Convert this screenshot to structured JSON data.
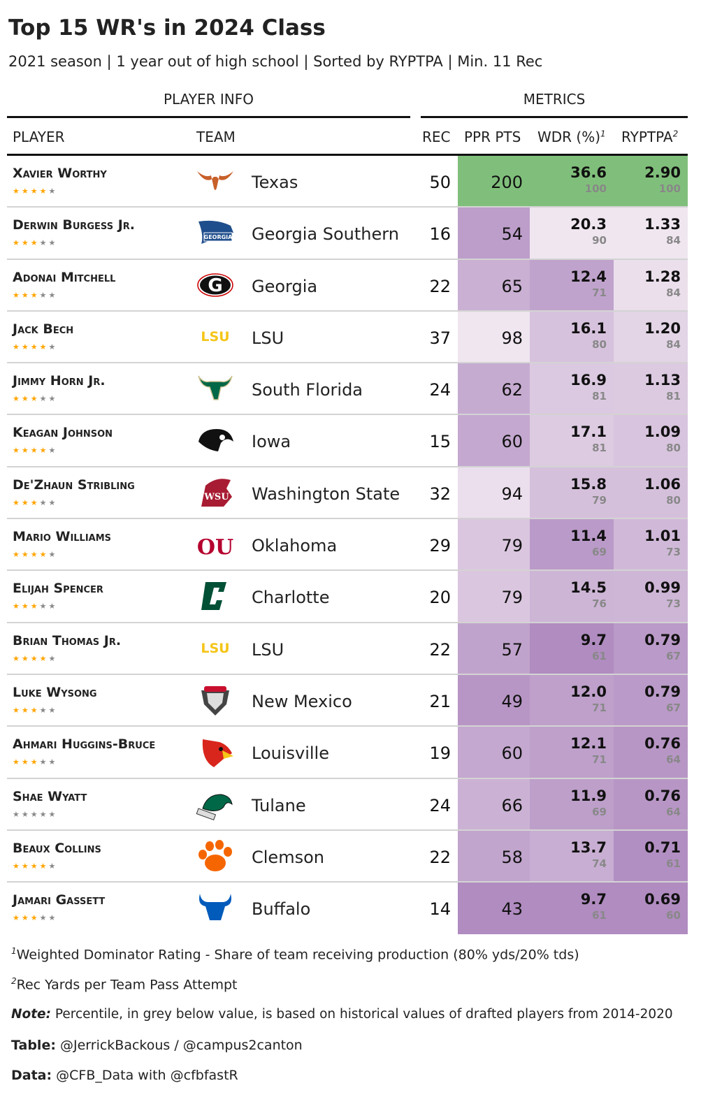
{
  "title": "Top 15 WR's in 2024 Class",
  "subtitle": "2021 season | 1 year out of high school | Sorted by RYPTPA | Min. 11 Rec",
  "spanners": {
    "player_info": "PLAYER INFO",
    "metrics": "METRICS"
  },
  "columns": {
    "player": "PLAYER",
    "team": "TEAM",
    "rec": "REC",
    "ppr": "PPR PTS",
    "wdr": "WDR (%)",
    "wdr_sup": "1",
    "ryptpa": "RYPTPA",
    "ryptpa_sup": "2"
  },
  "colors": {
    "top_value": "#80bf7b",
    "high": "#f0e6f0",
    "low": "#b08cc0",
    "star_on": "#ffa500",
    "star_off": "#888888",
    "percentile_text": "#888888"
  },
  "chart_data": {
    "type": "table",
    "rows": [
      {
        "player": "Xavier Worthy",
        "stars": 4,
        "team": "Texas",
        "logo": {
          "icon": "longhorn-logo",
          "text": "",
          "color": "#c8602a"
        },
        "rec": "50",
        "ppr": "200",
        "wdr": "36.6",
        "wdr_pct": "100",
        "ryptpa": "2.90",
        "ryptpa_pct": "100"
      },
      {
        "player": "Derwin Burgess Jr.",
        "stars": 3,
        "team": "Georgia Southern",
        "logo": {
          "icon": "eagle-logo",
          "text": "GS",
          "color": "#1f4e8c"
        },
        "rec": "16",
        "ppr": "54",
        "wdr": "20.3",
        "wdr_pct": "90",
        "ryptpa": "1.33",
        "ryptpa_pct": "84"
      },
      {
        "player": "Adonai Mitchell",
        "stars": 3,
        "team": "Georgia",
        "logo": {
          "icon": "g-logo",
          "text": "G",
          "color": "#111111"
        },
        "rec": "22",
        "ppr": "65",
        "wdr": "12.4",
        "wdr_pct": "71",
        "ryptpa": "1.28",
        "ryptpa_pct": "84"
      },
      {
        "player": "Jack Bech",
        "stars": 4,
        "team": "LSU",
        "logo": {
          "icon": "lsu-logo",
          "text": "LSU",
          "color": "#f5c518"
        },
        "rec": "37",
        "ppr": "98",
        "wdr": "16.1",
        "wdr_pct": "80",
        "ryptpa": "1.20",
        "ryptpa_pct": "84"
      },
      {
        "player": "Jimmy Horn Jr.",
        "stars": 3,
        "team": "South Florida",
        "logo": {
          "icon": "bull-horns-logo",
          "text": "U",
          "color": "#006747"
        },
        "rec": "24",
        "ppr": "62",
        "wdr": "16.9",
        "wdr_pct": "81",
        "ryptpa": "1.13",
        "ryptpa_pct": "81"
      },
      {
        "player": "Keagan Johnson",
        "stars": 4,
        "team": "Iowa",
        "logo": {
          "icon": "hawkeye-logo",
          "text": "",
          "color": "#111111"
        },
        "rec": "15",
        "ppr": "60",
        "wdr": "17.1",
        "wdr_pct": "81",
        "ryptpa": "1.09",
        "ryptpa_pct": "80"
      },
      {
        "player": "De'Zhaun Stribling",
        "stars": 3,
        "team": "Washington State",
        "logo": {
          "icon": "cougar-logo",
          "text": "WSU",
          "color": "#a81c33"
        },
        "rec": "32",
        "ppr": "94",
        "wdr": "15.8",
        "wdr_pct": "79",
        "ryptpa": "1.06",
        "ryptpa_pct": "80"
      },
      {
        "player": "Mario Williams",
        "stars": 4,
        "team": "Oklahoma",
        "logo": {
          "icon": "ou-logo",
          "text": "OU",
          "color": "#b5002f"
        },
        "rec": "29",
        "ppr": "79",
        "wdr": "11.4",
        "wdr_pct": "69",
        "ryptpa": "1.01",
        "ryptpa_pct": "73"
      },
      {
        "player": "Elijah Spencer",
        "stars": 3,
        "team": "Charlotte",
        "logo": {
          "icon": "charlotte-c-logo",
          "text": "C",
          "color": "#005035"
        },
        "rec": "20",
        "ppr": "79",
        "wdr": "14.5",
        "wdr_pct": "76",
        "ryptpa": "0.99",
        "ryptpa_pct": "73"
      },
      {
        "player": "Brian Thomas Jr.",
        "stars": 4,
        "team": "LSU",
        "logo": {
          "icon": "lsu-logo",
          "text": "LSU",
          "color": "#f5c518"
        },
        "rec": "22",
        "ppr": "57",
        "wdr": "9.7",
        "wdr_pct": "61",
        "ryptpa": "0.79",
        "ryptpa_pct": "67"
      },
      {
        "player": "Luke Wysong",
        "stars": 3,
        "team": "New Mexico",
        "logo": {
          "icon": "lobo-logo",
          "text": "LOBOS",
          "color": "#555555"
        },
        "rec": "21",
        "ppr": "49",
        "wdr": "12.0",
        "wdr_pct": "71",
        "ryptpa": "0.79",
        "ryptpa_pct": "67"
      },
      {
        "player": "Ahmari Huggins-Bruce",
        "stars": 3,
        "team": "Louisville",
        "logo": {
          "icon": "cardinal-logo",
          "text": "",
          "color": "#d9261c"
        },
        "rec": "19",
        "ppr": "60",
        "wdr": "12.1",
        "wdr_pct": "71",
        "ryptpa": "0.76",
        "ryptpa_pct": "64"
      },
      {
        "player": "Shae Wyatt",
        "stars": 0,
        "team": "Tulane",
        "logo": {
          "icon": "green-wave-logo",
          "text": "",
          "color": "#006747"
        },
        "rec": "24",
        "ppr": "66",
        "wdr": "11.9",
        "wdr_pct": "69",
        "ryptpa": "0.76",
        "ryptpa_pct": "64"
      },
      {
        "player": "Beaux Collins",
        "stars": 4,
        "team": "Clemson",
        "logo": {
          "icon": "tiger-paw-logo",
          "text": "",
          "color": "#f56600"
        },
        "rec": "22",
        "ppr": "58",
        "wdr": "13.7",
        "wdr_pct": "74",
        "ryptpa": "0.71",
        "ryptpa_pct": "61"
      },
      {
        "player": "Jamari Gassett",
        "stars": 3,
        "team": "Buffalo",
        "logo": {
          "icon": "bull-logo",
          "text": "",
          "color": "#005bbb"
        },
        "rec": "14",
        "ppr": "43",
        "wdr": "9.7",
        "wdr_pct": "61",
        "ryptpa": "0.69",
        "ryptpa_pct": "60"
      }
    ]
  },
  "footnotes": {
    "fn1_mark": "1",
    "fn1": "Weighted Dominator Rating - Share of team receiving production (80% yds/20% tds)",
    "fn2_mark": "2",
    "fn2": "Rec Yards per Team Pass Attempt",
    "note_label": "Note:",
    "note": "Percentile, in grey below value, is based on historical values of drafted players from 2014-2020",
    "table_label": "Table:",
    "table": "@JerrickBackous / @campus2canton",
    "data_label": "Data:",
    "data": "@CFB_Data with @cfbfastR"
  }
}
